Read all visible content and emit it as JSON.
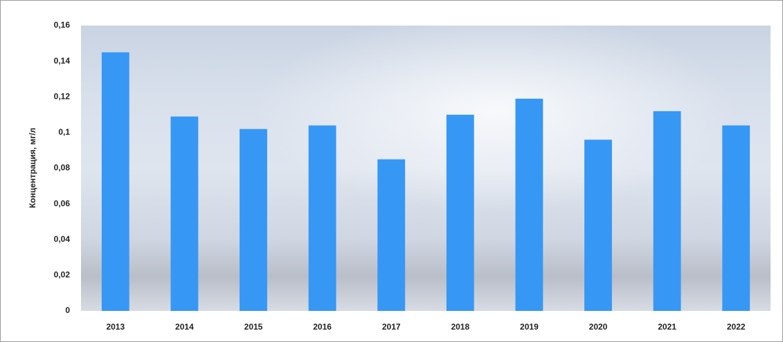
{
  "chart_data": {
    "type": "bar",
    "y_label": "Концентрация, мг/л",
    "categories": [
      "2013",
      "2014",
      "2015",
      "2016",
      "2017",
      "2018",
      "2019",
      "2020",
      "2021",
      "2022"
    ],
    "values": [
      0.145,
      0.109,
      0.102,
      0.104,
      0.085,
      0.11,
      0.119,
      0.096,
      0.112,
      0.104
    ],
    "color": "#3797f5",
    "ylim": [
      0,
      0.16
    ],
    "yticks": [
      0,
      {
        "value": 0.02,
        "label": "0,02"
      },
      {
        "value": 0.04,
        "label": "0,04"
      },
      {
        "value": 0.06,
        "label": "0,06"
      },
      {
        "value": 0.08,
        "label": "0,08"
      },
      {
        "value": 0.1,
        "label": "0,1"
      },
      {
        "value": 0.12,
        "label": "0,12"
      },
      {
        "value": 0.14,
        "label": "0,14"
      },
      {
        "value": 0.16,
        "label": "0,16"
      }
    ]
  }
}
